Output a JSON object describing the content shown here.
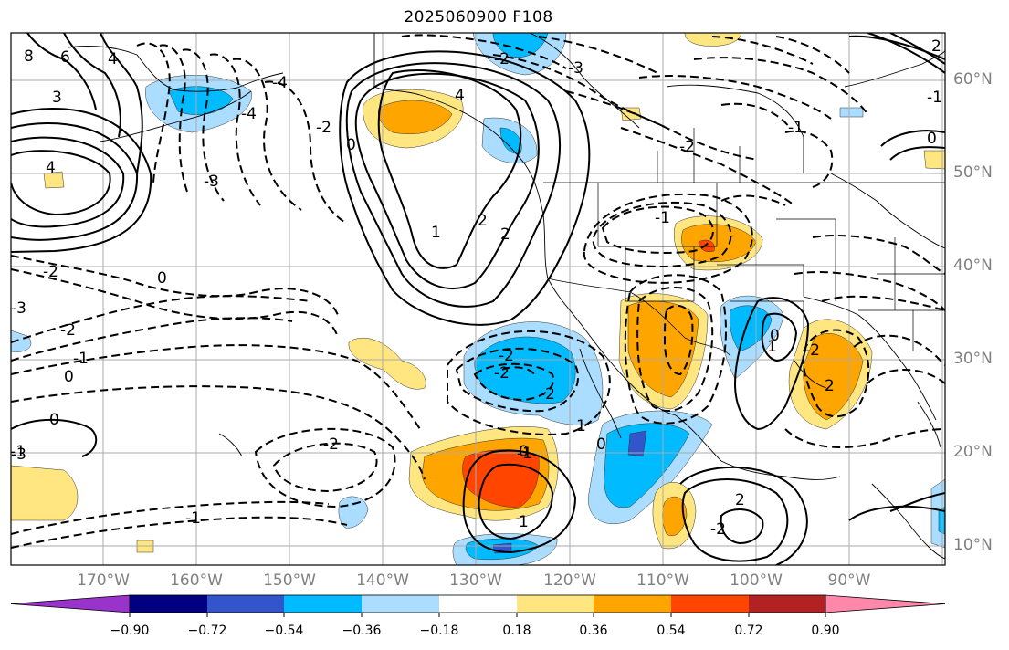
{
  "title": "2025060900 F108",
  "lat_labels": [
    "60°N",
    "50°N",
    "40°N",
    "30°N",
    "20°N",
    "10°N"
  ],
  "lon_labels": [
    "170°W",
    "160°W",
    "150°W",
    "140°W",
    "130°W",
    "120°W",
    "110°W",
    "100°W",
    "90°W"
  ],
  "contour_labels": [
    "8",
    "6",
    "4",
    "3",
    "4",
    "-4",
    "-3",
    "-2",
    "0",
    "-4",
    "-2",
    "-3",
    "4",
    "-3",
    "-2",
    "-1",
    "0",
    "1",
    "2",
    "2",
    "-1",
    "-2",
    "-1",
    "-2",
    "0",
    "-3",
    "-2",
    "-1",
    "0",
    "-2",
    "-2",
    "-2",
    "1",
    "0",
    "1",
    "-1",
    "0",
    "2",
    "-2",
    "0",
    "1",
    "2",
    "2",
    "-1",
    "0",
    "-2",
    "-1"
  ],
  "colorbar": {
    "ticks": [
      "−0.90",
      "−0.72",
      "−0.54",
      "−0.36",
      "−0.18",
      "0.18",
      "0.36",
      "0.54",
      "0.72",
      "0.90"
    ],
    "colors": [
      "#9933cc",
      "#000080",
      "#3355cc",
      "#00bbff",
      "#aaddff",
      "#ffffff",
      "#ffe680",
      "#ffa500",
      "#ff4500",
      "#b22222",
      "#ff88aa"
    ]
  }
}
